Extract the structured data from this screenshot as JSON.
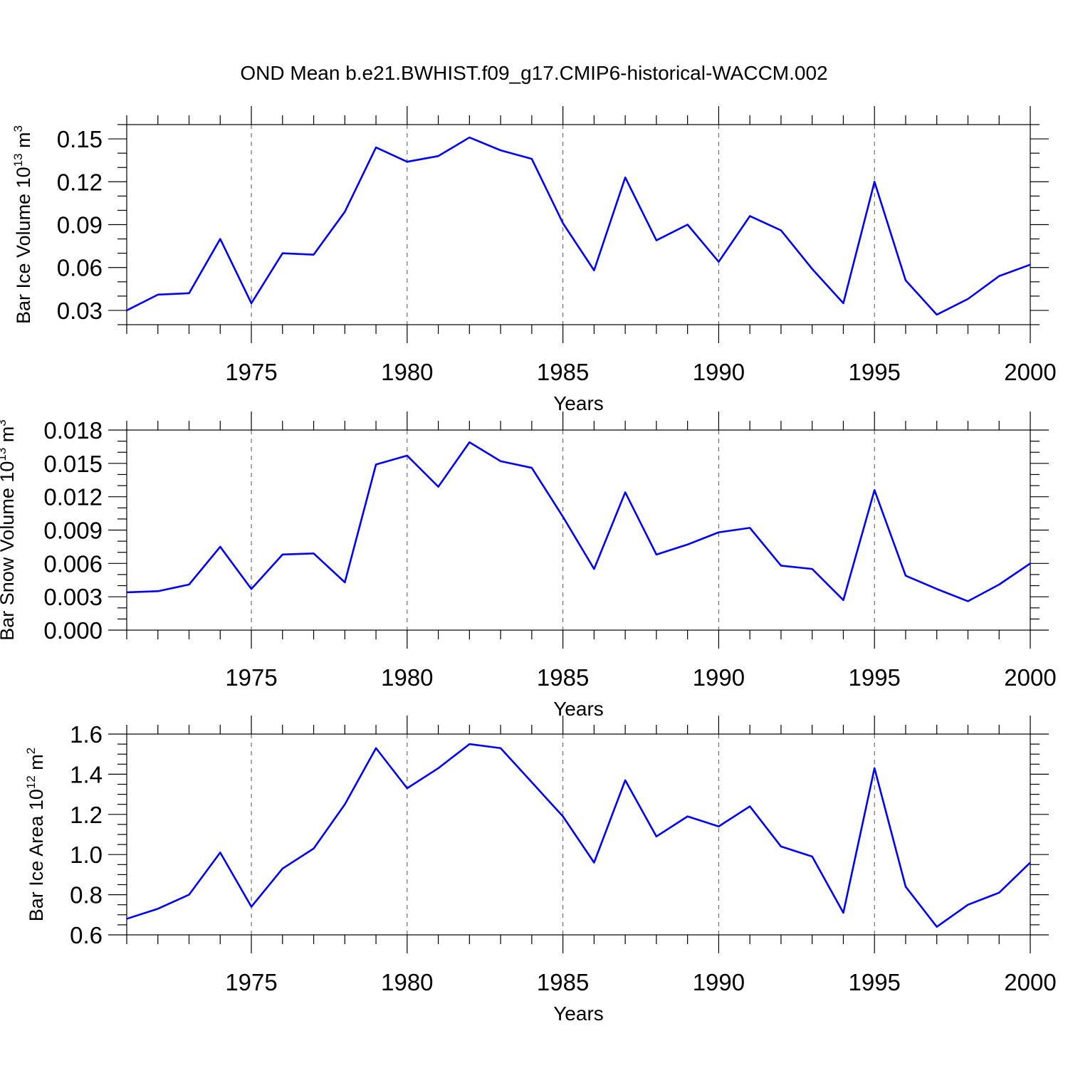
{
  "figure": {
    "title": "OND Mean b.e21.BWHIST.f09_g17.CMIP6-historical-WACCM.002"
  },
  "chart_data": [
    {
      "type": "line",
      "title": "",
      "xlabel": "Years",
      "ylabel": {
        "text": "Bar Ice Volume 10",
        "exp": "13",
        "unit": " m",
        "unit_exp": "3"
      },
      "xlim": [
        1971,
        2000
      ],
      "ylim": [
        0.02,
        0.16
      ],
      "x_ticks": [
        1975,
        1980,
        1985,
        1990,
        1995,
        2000
      ],
      "x_tick_labels": [
        "1975",
        "1980",
        "1985",
        "1990",
        "1995",
        "2000"
      ],
      "y_ticks": [
        0.03,
        0.06,
        0.09,
        0.12,
        0.15
      ],
      "y_tick_labels": [
        "0.03",
        "0.06",
        "0.09",
        "0.12",
        "0.15"
      ],
      "y_minor_step": 0.01,
      "grid": "vertical-dashed",
      "series_color": "#0000ff",
      "x": [
        1971,
        1972,
        1973,
        1974,
        1975,
        1976,
        1977,
        1978,
        1979,
        1980,
        1981,
        1982,
        1983,
        1984,
        1985,
        1986,
        1987,
        1988,
        1989,
        1990,
        1991,
        1992,
        1993,
        1994,
        1995,
        1996,
        1997,
        1998,
        1999,
        2000
      ],
      "values": [
        0.03,
        0.041,
        0.042,
        0.08,
        0.035,
        0.07,
        0.069,
        0.099,
        0.144,
        0.134,
        0.138,
        0.151,
        0.142,
        0.136,
        0.091,
        0.058,
        0.123,
        0.079,
        0.09,
        0.064,
        0.096,
        0.086,
        0.059,
        0.035,
        0.12,
        0.051,
        0.027,
        0.038,
        0.054,
        0.062
      ]
    },
    {
      "type": "line",
      "title": "",
      "xlabel": "Years",
      "ylabel": {
        "text": "Bar Snow Volume 10",
        "exp": "13",
        "unit": " m",
        "unit_exp": "3"
      },
      "xlim": [
        1971,
        2000
      ],
      "ylim": [
        0.0,
        0.018
      ],
      "x_ticks": [
        1975,
        1980,
        1985,
        1990,
        1995,
        2000
      ],
      "x_tick_labels": [
        "1975",
        "1980",
        "1985",
        "1990",
        "1995",
        "2000"
      ],
      "y_ticks": [
        0.0,
        0.003,
        0.006,
        0.009,
        0.012,
        0.015,
        0.018
      ],
      "y_tick_labels": [
        "0.000",
        "0.003",
        "0.006",
        "0.009",
        "0.012",
        "0.015",
        "0.018"
      ],
      "y_minor_step": 0.001,
      "grid": "vertical-dashed",
      "series_color": "#0000ff",
      "x": [
        1971,
        1972,
        1973,
        1974,
        1975,
        1976,
        1977,
        1978,
        1979,
        1980,
        1981,
        1982,
        1983,
        1984,
        1985,
        1986,
        1987,
        1988,
        1989,
        1990,
        1991,
        1992,
        1993,
        1994,
        1995,
        1996,
        1997,
        1998,
        1999,
        2000
      ],
      "values": [
        0.0034,
        0.0035,
        0.0041,
        0.0075,
        0.0037,
        0.0068,
        0.0069,
        0.0043,
        0.0149,
        0.0157,
        0.0129,
        0.0169,
        0.0152,
        0.0146,
        0.0102,
        0.0055,
        0.0124,
        0.0068,
        0.0077,
        0.0088,
        0.0092,
        0.0058,
        0.0055,
        0.0027,
        0.0126,
        0.0049,
        0.0037,
        0.0026,
        0.0041,
        0.006
      ]
    },
    {
      "type": "line",
      "title": "",
      "xlabel": "Years",
      "ylabel": {
        "text": "Bar Ice Area 10",
        "exp": "12",
        "unit": " m",
        "unit_exp": "2"
      },
      "xlim": [
        1971,
        2000
      ],
      "ylim": [
        0.6,
        1.6
      ],
      "x_ticks": [
        1975,
        1980,
        1985,
        1990,
        1995,
        2000
      ],
      "x_tick_labels": [
        "1975",
        "1980",
        "1985",
        "1990",
        "1995",
        "2000"
      ],
      "y_ticks": [
        0.6,
        0.8,
        1.0,
        1.2,
        1.4,
        1.6
      ],
      "y_tick_labels": [
        "0.6",
        "0.8",
        "1.0",
        "1.2",
        "1.4",
        "1.6"
      ],
      "y_minor_step": 0.05,
      "grid": "vertical-dashed",
      "series_color": "#0000ff",
      "x": [
        1971,
        1972,
        1973,
        1974,
        1975,
        1976,
        1977,
        1978,
        1979,
        1980,
        1981,
        1982,
        1983,
        1984,
        1985,
        1986,
        1987,
        1988,
        1989,
        1990,
        1991,
        1992,
        1993,
        1994,
        1995,
        1996,
        1997,
        1998,
        1999,
        2000
      ],
      "values": [
        0.68,
        0.73,
        0.8,
        1.01,
        0.74,
        0.93,
        1.03,
        1.25,
        1.53,
        1.33,
        1.43,
        1.55,
        1.53,
        1.36,
        1.19,
        0.96,
        1.37,
        1.09,
        1.19,
        1.14,
        1.24,
        1.04,
        0.99,
        0.71,
        1.43,
        0.84,
        0.64,
        0.75,
        0.81,
        0.96
      ]
    }
  ]
}
